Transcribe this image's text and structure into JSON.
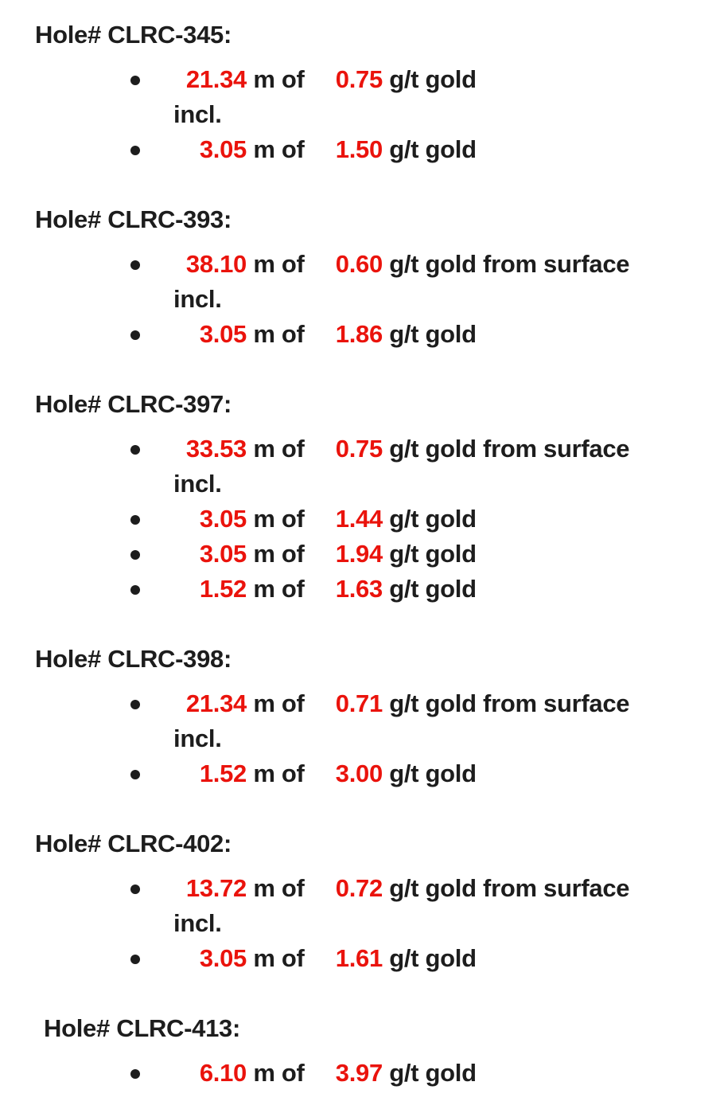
{
  "page": {
    "background_color": "#ffffff",
    "text_color": "#1d1d1d",
    "number_color": "#ea130c"
  },
  "sections": [
    {
      "title": "Hole# CLRC-345:",
      "indented": false,
      "lines": [
        {
          "bullet": true,
          "width_m": "21.34",
          "mid": "m of",
          "grade": "0.75",
          "tail": "g/t gold"
        },
        {
          "bullet": false,
          "text": "incl."
        },
        {
          "bullet": true,
          "width_m": "3.05",
          "mid": "m of",
          "grade": "1.50",
          "tail": "g/t gold"
        }
      ]
    },
    {
      "title": "Hole# CLRC-393:",
      "indented": false,
      "lines": [
        {
          "bullet": true,
          "width_m": "38.10",
          "mid": "m of",
          "grade": "0.60",
          "tail": "g/t gold from surface"
        },
        {
          "bullet": false,
          "text": "incl."
        },
        {
          "bullet": true,
          "width_m": "3.05",
          "mid": "m of",
          "grade": "1.86",
          "tail": "g/t gold"
        }
      ]
    },
    {
      "title": "Hole# CLRC-397:",
      "indented": false,
      "lines": [
        {
          "bullet": true,
          "width_m": "33.53",
          "mid": "m of",
          "grade": "0.75",
          "tail": "g/t gold from surface"
        },
        {
          "bullet": false,
          "text": "incl."
        },
        {
          "bullet": true,
          "width_m": "3.05",
          "mid": "m of",
          "grade": "1.44",
          "tail": "g/t gold"
        },
        {
          "bullet": true,
          "width_m": "3.05",
          "mid": "m of",
          "grade": "1.94",
          "tail": "g/t gold"
        },
        {
          "bullet": true,
          "width_m": "1.52",
          "mid": "m of",
          "grade": "1.63",
          "tail": "g/t gold"
        }
      ]
    },
    {
      "title": "Hole# CLRC-398:",
      "indented": false,
      "lines": [
        {
          "bullet": true,
          "width_m": "21.34",
          "mid": "m of",
          "grade": "0.71",
          "tail": "g/t gold from surface"
        },
        {
          "bullet": false,
          "text": "incl."
        },
        {
          "bullet": true,
          "width_m": "1.52",
          "mid": "m of",
          "grade": "3.00",
          "tail": "g/t gold"
        }
      ]
    },
    {
      "title": "Hole# CLRC-402:",
      "indented": false,
      "lines": [
        {
          "bullet": true,
          "width_m": "13.72",
          "mid": "m of",
          "grade": "0.72",
          "tail": "g/t gold from surface"
        },
        {
          "bullet": false,
          "text": "incl."
        },
        {
          "bullet": true,
          "width_m": "3.05",
          "mid": "m of",
          "grade": "1.61",
          "tail": "g/t gold"
        }
      ]
    },
    {
      "title": "Hole# CLRC-413:",
      "indented": true,
      "lines": [
        {
          "bullet": true,
          "width_m": "6.10",
          "mid": "m of",
          "grade": "3.97",
          "tail": "g/t gold"
        }
      ]
    }
  ]
}
